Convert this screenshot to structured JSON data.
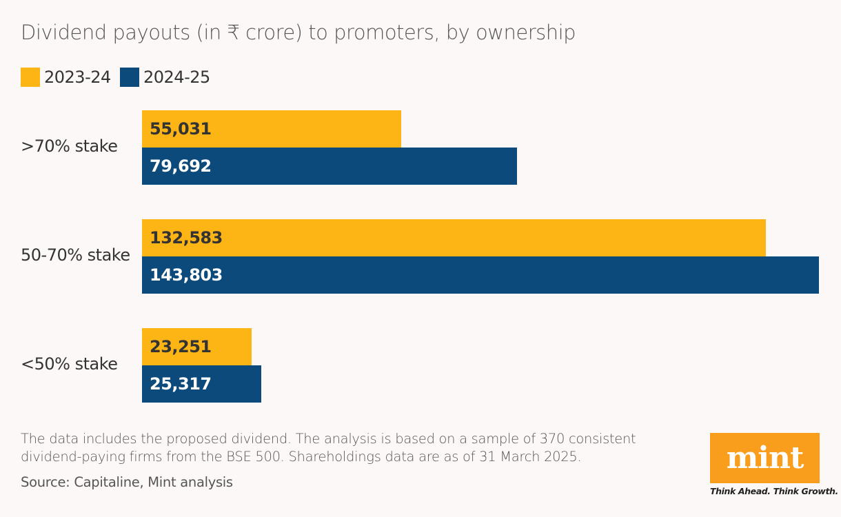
{
  "chart_data": {
    "type": "bar",
    "orientation": "horizontal",
    "title": "Dividend payouts (in ₹ crore) to promoters, by ownership",
    "categories": [
      ">70% stake",
      "50-70% stake",
      "<50% stake"
    ],
    "series": [
      {
        "name": "2023-24",
        "color": "#fdb415",
        "label_color": "#333333",
        "values": [
          55031,
          132583,
          23251
        ],
        "labels": [
          "55,031",
          "132,583",
          "23,251"
        ]
      },
      {
        "name": "2024-25",
        "color": "#0c4a7b",
        "label_color": "#ffffff",
        "values": [
          79692,
          143803,
          25317
        ],
        "labels": [
          "79,692",
          "143,803",
          "25,317"
        ]
      }
    ],
    "xlim": [
      0,
      143803
    ],
    "grid": false,
    "legend": "top-left"
  },
  "note": "The data includes the proposed dividend. The analysis is based on a sample of 370 consistent dividend-paying firms from the BSE 500. Shareholdings data are as of 31 March 2025.",
  "source": "Source: Capitaline, Mint analysis",
  "logo": {
    "text": "mint",
    "tagline": "Think Ahead. Think Growth.",
    "color": "#f99d1c"
  }
}
